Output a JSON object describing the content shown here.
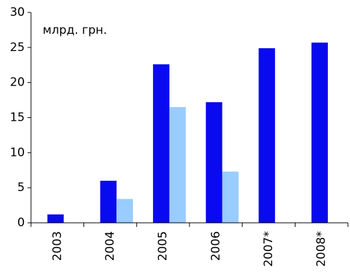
{
  "chart_data": {
    "type": "bar",
    "y_label": "млрд. грн.",
    "categories": [
      "2003",
      "2004",
      "2005",
      "2006",
      "2007*",
      "2008*"
    ],
    "series": [
      {
        "color": "#0a0af0",
        "values": [
          1.2,
          6.0,
          22.6,
          17.2,
          24.9,
          25.7
        ]
      },
      {
        "color": "#99ccff",
        "values": [
          null,
          3.4,
          16.5,
          7.3,
          null,
          null
        ]
      }
    ],
    "ylim": [
      0,
      30
    ],
    "yticks": [
      0,
      5,
      10,
      15,
      20,
      25,
      30
    ]
  }
}
